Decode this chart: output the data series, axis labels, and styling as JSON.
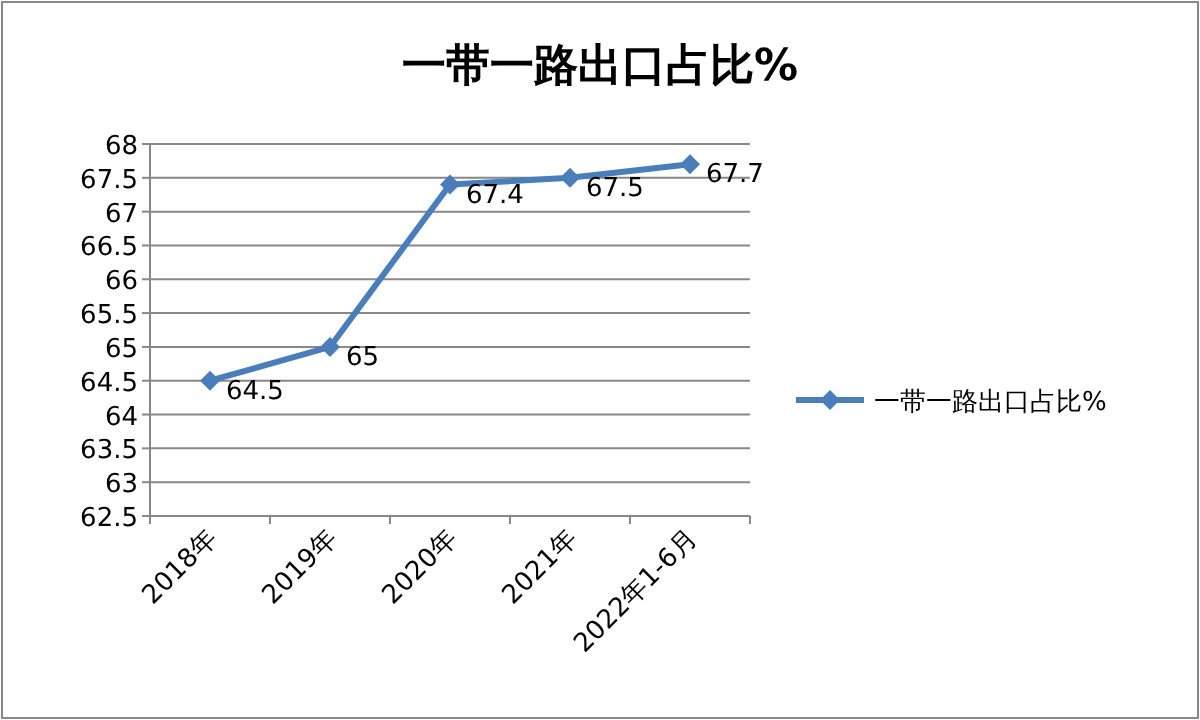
{
  "chart_data": {
    "type": "line",
    "title": "一带一路出口占比%",
    "categories": [
      "2018年",
      "2019年",
      "2020年",
      "2021年",
      "2022年1-6月"
    ],
    "series": [
      {
        "name": "一带一路出口占比%",
        "color": "#4a7ebb",
        "values": [
          64.5,
          65,
          67.4,
          67.5,
          67.7
        ]
      }
    ],
    "ylim": [
      62.5,
      68
    ],
    "yticks": [
      62.5,
      63,
      63.5,
      64,
      64.5,
      65,
      65.5,
      66,
      66.5,
      67,
      67.5,
      68
    ],
    "grid": "y",
    "legend": "right",
    "marker": "diamond",
    "line_style": "solid",
    "data_labels": true
  }
}
